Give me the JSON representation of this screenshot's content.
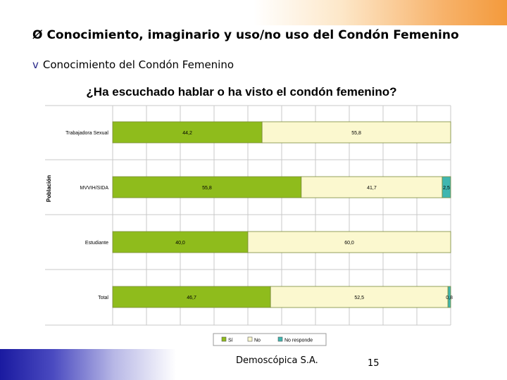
{
  "slide": {
    "heading1": "Conocimiento, imaginario y uso/no uso del Condón Femenino",
    "heading1_bullet": "Ø",
    "heading2": "Conocimiento del Condón Femenino",
    "heading2_bullet": "v",
    "footer_company": "Demoscópica S.A.",
    "page_number": "15"
  },
  "colors": {
    "si": "#8fbc1c",
    "no": "#fbf8cf",
    "no_responde": "#3fb6b0",
    "bar_border": "#7a8a3a",
    "grid": "#c8c8c8",
    "top_band": "#f39a3c",
    "bottom_band": "#1a1aa0"
  },
  "chart_data": {
    "type": "bar",
    "orientation": "horizontal",
    "stacked": true,
    "title": "¿Ha escuchado hablar o ha visto el condón femenino?",
    "ylabel": "Población",
    "xlabel": "",
    "xlim": [
      0,
      100
    ],
    "grid": true,
    "legend_position": "bottom",
    "categories": [
      "Trabajadora Sexual",
      "MVVIH/SIDA",
      "Estudiante",
      "Total"
    ],
    "series": [
      {
        "name": "Sí",
        "values": [
          44.2,
          55.8,
          40.0,
          46.7
        ],
        "labels": [
          "44,2",
          "55,8",
          "40,0",
          "46,7"
        ]
      },
      {
        "name": "No",
        "values": [
          55.8,
          41.7,
          60.0,
          52.5
        ],
        "labels": [
          "55,8",
          "41,7",
          "60,0",
          "52,5"
        ]
      },
      {
        "name": "No responde",
        "values": [
          0,
          2.5,
          0,
          0.8
        ],
        "labels": [
          "",
          "2,5",
          "",
          "0,8"
        ]
      }
    ]
  }
}
